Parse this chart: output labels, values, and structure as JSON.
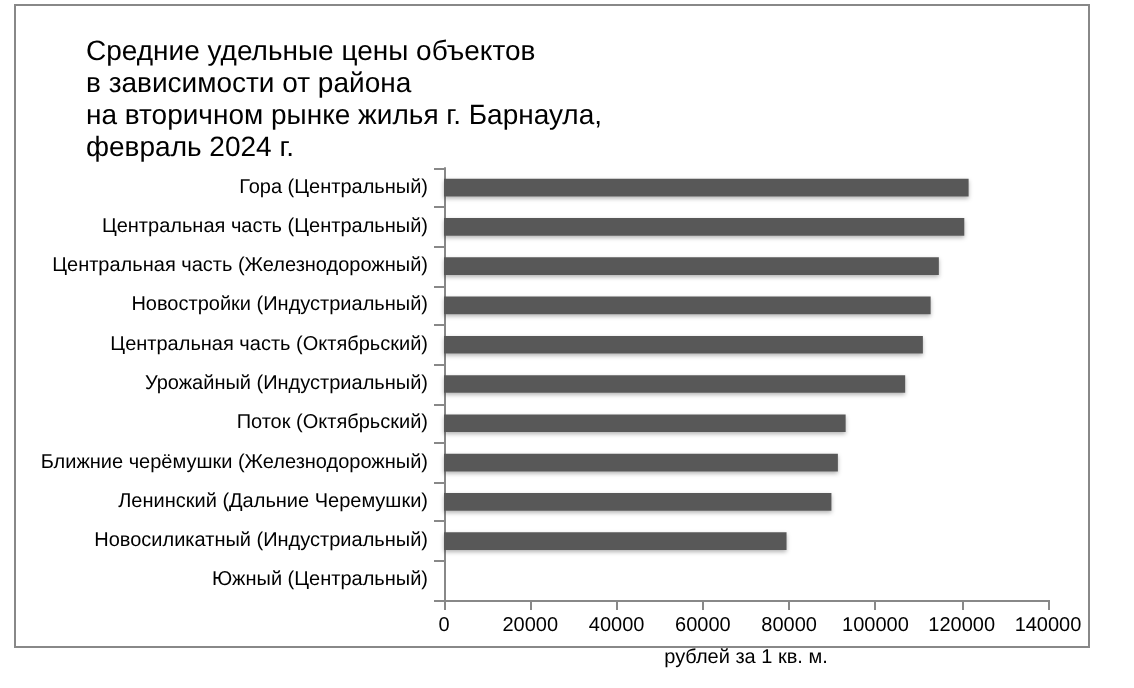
{
  "chart_data": {
    "type": "bar",
    "orientation": "horizontal",
    "title": "Средние удельные цены объектов\nв зависимости от района\nна вторичном рынке жилья г. Барнаула,\nфевраль 2024 г.",
    "xlabel": "рублей за 1 кв. м.",
    "categories": [
      "Гора (Центральный)",
      "Центральная часть (Центральный)",
      "Центральная часть (Железнодорожный)",
      "Новостройки (Индустриальный)",
      "Центральная часть (Октябрьский)",
      "Урожайный (Индустриальный)",
      "Поток (Октябрьский)",
      "Ближние черёмушки (Железнодорожный)",
      "Ленинский (Дальние Черемушки)",
      "Новосиликатный (Индустриальный)",
      "Южный (Центральный)"
    ],
    "values": [
      121600,
      120600,
      114700,
      112800,
      111000,
      106900,
      93100,
      91300,
      89800,
      79400,
      null
    ],
    "color": "#595959",
    "xlim": [
      0,
      140000
    ],
    "xticks": [
      0,
      20000,
      40000,
      60000,
      80000,
      100000,
      120000,
      140000
    ],
    "grid": false
  }
}
